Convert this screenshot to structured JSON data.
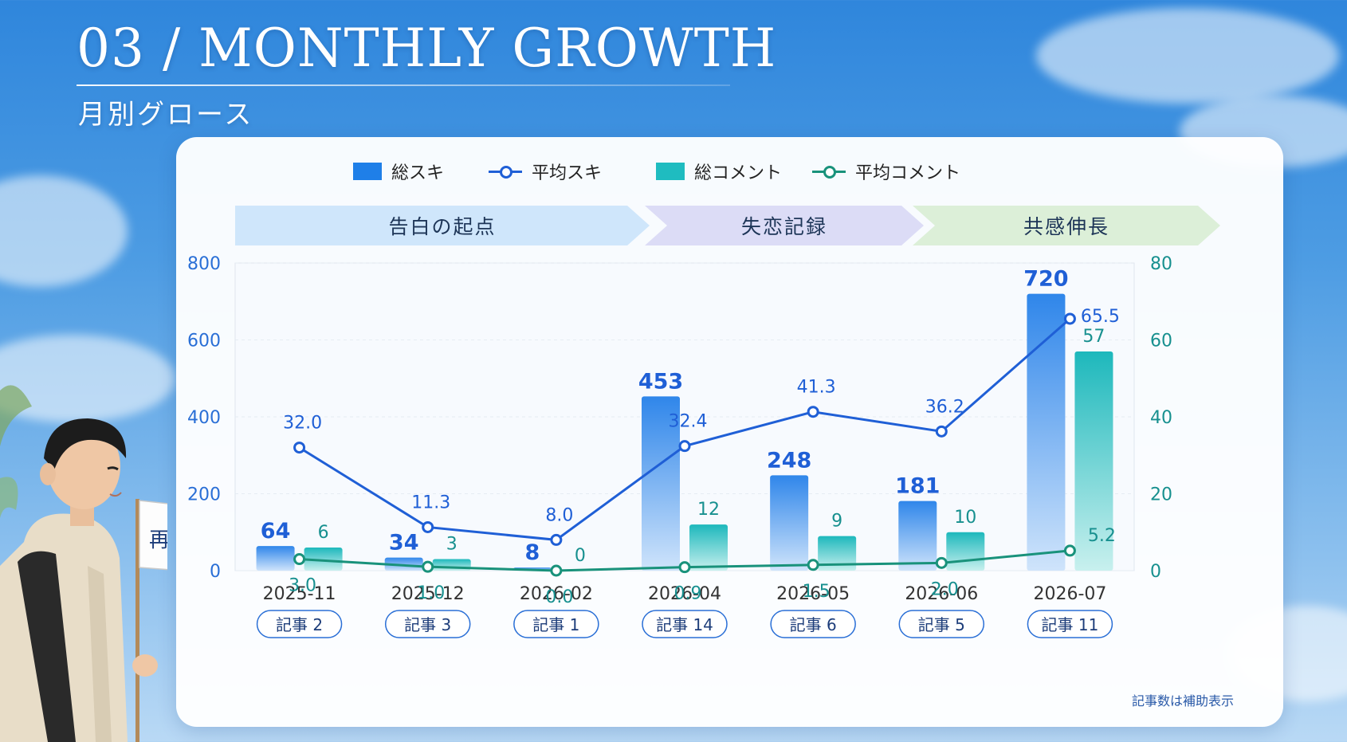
{
  "header": {
    "title": "03 / MONTHLY GROWTH",
    "subtitle": "月別グロース"
  },
  "legend": [
    {
      "label": "総スキ",
      "kind": "bar",
      "color": "#1f7fe8"
    },
    {
      "label": "平均スキ",
      "kind": "line",
      "color": "#1f5fd6"
    },
    {
      "label": "総コメント",
      "kind": "bar",
      "color": "#1fbcc0"
    },
    {
      "label": "平均コメント",
      "kind": "line",
      "color": "#19927b"
    }
  ],
  "phases": [
    {
      "label": "告白の起点",
      "color": "#cfe6fb"
    },
    {
      "label": "失恋記録",
      "color": "#dcdcf6"
    },
    {
      "label": "共感伸長",
      "color": "#dcefd8"
    }
  ],
  "note": "記事数は補助表示",
  "flag_text": "再出発",
  "chart_data": {
    "type": "bar",
    "categories": [
      "2025-11",
      "2025-12",
      "2026-02",
      "2026-04",
      "2026-05",
      "2026-06",
      "2026-07"
    ],
    "article_badges": [
      "記事 2",
      "記事 3",
      "記事 1",
      "記事 14",
      "記事 6",
      "記事 5",
      "記事 11"
    ],
    "series": [
      {
        "name": "総スキ",
        "type": "bar",
        "axis": "left",
        "values": [
          64,
          34,
          8,
          453,
          248,
          181,
          720
        ],
        "labels": [
          "64",
          "34",
          "8",
          "453",
          "248",
          "181",
          "720"
        ]
      },
      {
        "name": "総コメント",
        "type": "bar",
        "axis": "right",
        "values": [
          6,
          3,
          0,
          12,
          9,
          10,
          57
        ],
        "labels": [
          "6",
          "3",
          "0",
          "12",
          "9",
          "10",
          "57"
        ]
      },
      {
        "name": "平均スキ",
        "type": "line",
        "axis": "right",
        "values": [
          32.0,
          11.3,
          8.0,
          32.4,
          41.3,
          36.2,
          65.5
        ],
        "labels": [
          "32.0",
          "11.3",
          "8.0",
          "32.4",
          "41.3",
          "36.2",
          "65.5"
        ]
      },
      {
        "name": "平均コメント",
        "type": "line",
        "axis": "right",
        "values": [
          3.0,
          1.0,
          0.0,
          0.9,
          1.5,
          2.0,
          5.2
        ],
        "labels": [
          "3.0",
          "1.0",
          "0.0",
          "0.9",
          "1.5",
          "2.0",
          "5.2"
        ]
      }
    ],
    "y_left": {
      "ticks": [
        0,
        200,
        400,
        600,
        800
      ],
      "ylim": [
        0,
        800
      ]
    },
    "y_right": {
      "ticks": [
        0,
        20,
        40,
        60,
        80
      ],
      "ylim": [
        0,
        80
      ]
    },
    "grid": true,
    "legend_position": "top"
  }
}
